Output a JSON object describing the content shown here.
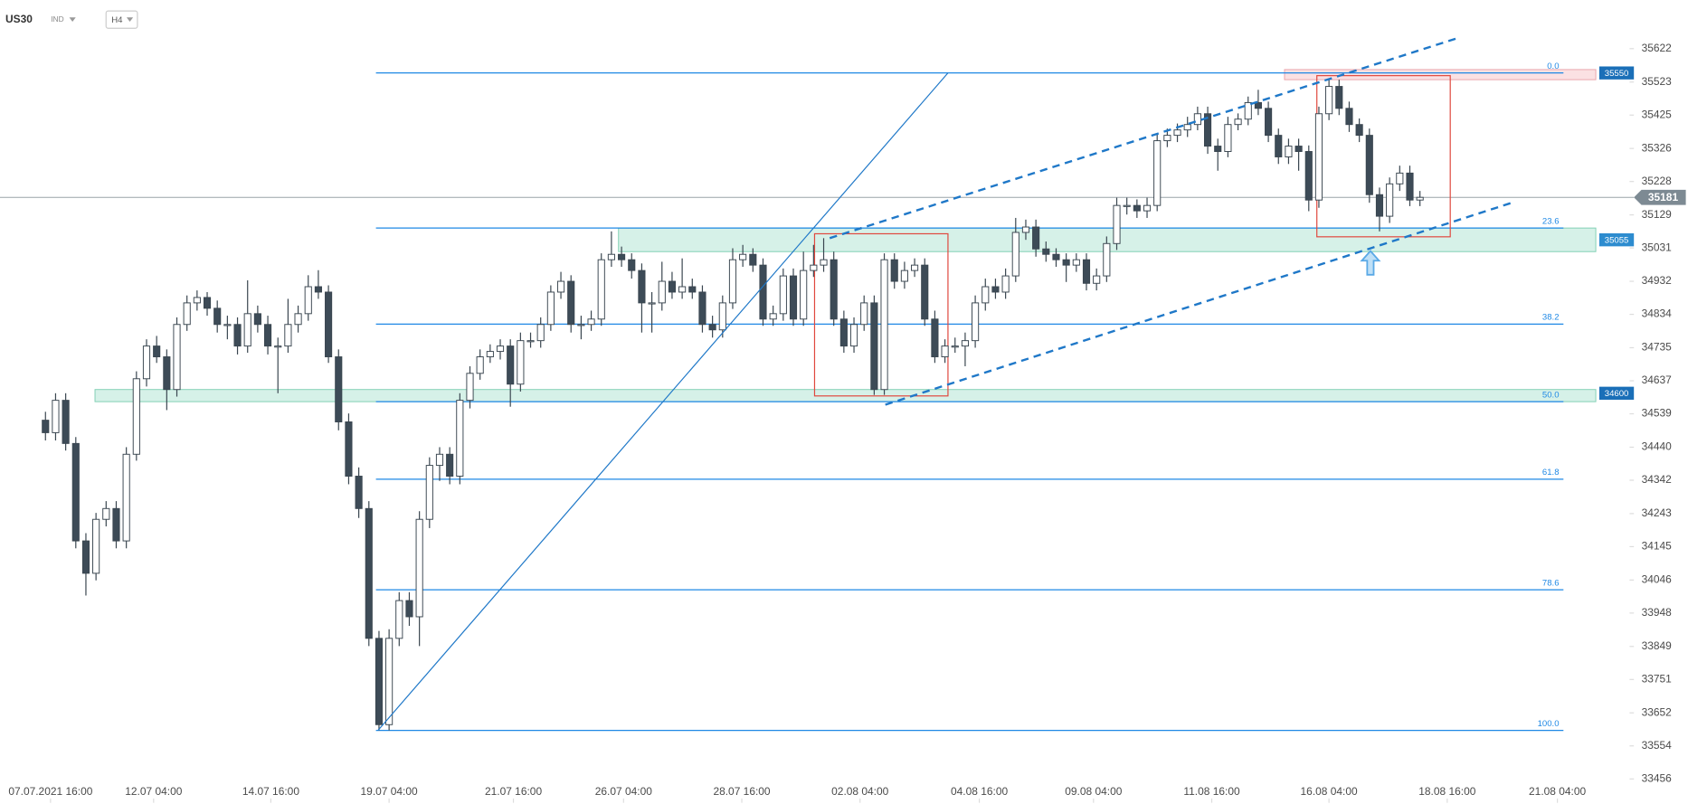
{
  "chart_data": {
    "type": "candlestick",
    "symbol": "US30",
    "market": "IND",
    "timeframe": "H4",
    "colors": {
      "up": "#ffffff",
      "down": "#3d4b57",
      "outline": "#3a4650",
      "fib": "#1e88e5",
      "trend": "#1f78c8",
      "box": "#e0483e",
      "price_line": "#9aa3a9",
      "price_box": "#7d8a93"
    },
    "open": [
      34520,
      34483,
      34579,
      34451,
      34162,
      34066,
      34226,
      34258,
      34162,
      34419,
      34643,
      34740,
      34708,
      34611,
      34804,
      34868,
      34884,
      34852,
      34804,
      34804,
      34740,
      34836,
      34804,
      34740,
      34740,
      34804,
      34836,
      34916,
      34900,
      34708,
      34515,
      34354,
      34258,
      33873,
      33617,
      33873,
      33985,
      33937,
      34226,
      34386,
      34419,
      34354,
      34579,
      34659,
      34708,
      34724,
      34740,
      34627,
      34756,
      34756,
      34804,
      34900,
      34932,
      34804,
      34804,
      34820,
      34996,
      35012,
      34996,
      34964,
      34868,
      34868,
      34932,
      34900,
      34916,
      34900,
      34804,
      34788,
      34868,
      34996,
      35012,
      34980,
      34820,
      34836,
      34948,
      34820,
      34964,
      34980,
      34996,
      34820,
      34740,
      34804,
      34868,
      34611,
      34996,
      34932,
      34964,
      34980,
      34820,
      34708,
      34740,
      34740,
      34756,
      34868,
      34916,
      34900,
      34948,
      35077,
      35093,
      35028,
      35012,
      34996,
      34980,
      34996,
      34926,
      34948,
      35044,
      35157,
      35157,
      35141,
      35157,
      35349,
      35365,
      35381,
      35397,
      35429,
      35333,
      35317,
      35397,
      35413,
      35462,
      35445,
      35365,
      35301,
      35333,
      35317,
      35173,
      35429,
      35510,
      35445,
      35397,
      35365,
      35189,
      35125,
      35221,
      35253,
      35173
    ],
    "high": [
      34545,
      34600,
      34600,
      34470,
      34185,
      34245,
      34280,
      34280,
      34440,
      34665,
      34760,
      34770,
      34730,
      34825,
      34890,
      34905,
      34900,
      34875,
      34830,
      34825,
      34935,
      34860,
      34830,
      34765,
      34880,
      34860,
      34950,
      34965,
      34920,
      34730,
      34540,
      34380,
      34280,
      33895,
      33900,
      34010,
      34010,
      34250,
      34410,
      34440,
      34440,
      34600,
      34680,
      34730,
      34745,
      34760,
      34760,
      34780,
      34780,
      34825,
      34920,
      34960,
      34950,
      34830,
      34845,
      35015,
      35080,
      35035,
      35015,
      34985,
      34900,
      34990,
      34960,
      35000,
      34940,
      34920,
      34830,
      34890,
      35030,
      35040,
      35030,
      35000,
      34860,
      34970,
      34970,
      35020,
      35040,
      35060,
      35020,
      34845,
      34825,
      34890,
      34890,
      35015,
      35015,
      34990,
      35000,
      35000,
      34845,
      34760,
      34765,
      34780,
      34890,
      34940,
      34940,
      34970,
      35120,
      35115,
      35115,
      35050,
      35030,
      35015,
      35015,
      35015,
      34970,
      35065,
      35180,
      35180,
      35175,
      35180,
      35370,
      35385,
      35400,
      35420,
      35450,
      35450,
      35355,
      35420,
      35430,
      35480,
      35500,
      35465,
      35385,
      35355,
      35355,
      35335,
      35450,
      35530,
      35530,
      35465,
      35415,
      35385,
      35210,
      35240,
      35275,
      35275,
      35200
    ],
    "low": [
      34460,
      34460,
      34430,
      34140,
      34000,
      34045,
      34205,
      34140,
      34140,
      34400,
      34620,
      34690,
      34550,
      34590,
      34785,
      34845,
      34830,
      34780,
      34760,
      34715,
      34720,
      34780,
      34715,
      34600,
      34720,
      34780,
      34815,
      34880,
      34690,
      34490,
      34330,
      34230,
      33850,
      33600,
      33600,
      33850,
      33910,
      33850,
      34200,
      34340,
      34330,
      34330,
      34555,
      34640,
      34690,
      34700,
      34560,
      34605,
      34735,
      34735,
      34785,
      34880,
      34780,
      34760,
      34785,
      34800,
      34975,
      34975,
      34940,
      34780,
      34780,
      34845,
      34880,
      34880,
      34880,
      34780,
      34765,
      34765,
      34850,
      34975,
      34960,
      34800,
      34800,
      34815,
      34800,
      34800,
      34945,
      34960,
      34800,
      34720,
      34720,
      34785,
      34595,
      34595,
      34910,
      34910,
      34945,
      34800,
      34690,
      34690,
      34720,
      34680,
      34735,
      34845,
      34880,
      34880,
      34930,
      35055,
      35005,
      34990,
      34975,
      34930,
      34960,
      34905,
      34905,
      34930,
      35025,
      35130,
      35120,
      35120,
      35140,
      35330,
      35345,
      35360,
      35380,
      35310,
      35260,
      35300,
      35380,
      35395,
      35425,
      35345,
      35280,
      35280,
      35260,
      35140,
      35150,
      35410,
      35425,
      35375,
      35345,
      35165,
      35080,
      35105,
      35200,
      35155,
      35155
    ],
    "close": [
      34483,
      34579,
      34451,
      34162,
      34066,
      34226,
      34258,
      34162,
      34419,
      34643,
      34740,
      34708,
      34611,
      34804,
      34868,
      34884,
      34852,
      34804,
      34804,
      34740,
      34836,
      34804,
      34740,
      34740,
      34804,
      34836,
      34916,
      34900,
      34708,
      34515,
      34354,
      34258,
      33873,
      33617,
      33873,
      33985,
      33937,
      34226,
      34386,
      34419,
      34354,
      34579,
      34659,
      34708,
      34724,
      34740,
      34627,
      34756,
      34756,
      34804,
      34900,
      34932,
      34804,
      34804,
      34820,
      34996,
      35012,
      34996,
      34964,
      34868,
      34868,
      34932,
      34900,
      34916,
      34900,
      34804,
      34788,
      34868,
      34996,
      35012,
      34980,
      34820,
      34836,
      34948,
      34820,
      34964,
      34980,
      34996,
      34820,
      34740,
      34804,
      34868,
      34611,
      34996,
      34932,
      34964,
      34980,
      34820,
      34708,
      34740,
      34740,
      34756,
      34868,
      34916,
      34900,
      34948,
      35077,
      35093,
      35028,
      35012,
      34996,
      34980,
      34996,
      34926,
      34948,
      35044,
      35157,
      35157,
      35141,
      35157,
      35349,
      35365,
      35381,
      35397,
      35429,
      35333,
      35317,
      35397,
      35413,
      35462,
      35445,
      35365,
      35301,
      35333,
      35317,
      35173,
      35429,
      35510,
      35445,
      35397,
      35365,
      35189,
      35125,
      35221,
      35253,
      35173,
      35181
    ],
    "xlim": [
      -4.5,
      156.1
    ],
    "ylim": [
      33382,
      35766
    ],
    "yticks": [
      35622,
      35523,
      35425,
      35326,
      35228,
      35129,
      35031,
      34932,
      34834,
      34735,
      34637,
      34539,
      34440,
      34342,
      34243,
      34145,
      34046,
      33948,
      33849,
      33751,
      33652,
      33554,
      33456
    ],
    "xticks": [
      {
        "value": 0.5,
        "label": "07.07.2021  16:00"
      },
      {
        "value": 10.7,
        "label": "12.07  04:00"
      },
      {
        "value": 22.3,
        "label": "14.07  16:00"
      },
      {
        "value": 34,
        "label": "19.07  04:00"
      },
      {
        "value": 46.3,
        "label": "21.07  16:00"
      },
      {
        "value": 57.2,
        "label": "26.07  04:00"
      },
      {
        "value": 68.9,
        "label": "28.07  16:00"
      },
      {
        "value": 80.6,
        "label": "02.08  04:00"
      },
      {
        "value": 92.4,
        "label": "04.08  16:00"
      },
      {
        "value": 103.7,
        "label": "09.08  04:00"
      },
      {
        "value": 115.4,
        "label": "11.08  16:00"
      },
      {
        "value": 127,
        "label": "16.08  04:00"
      },
      {
        "value": 138.7,
        "label": "18.08  16:00"
      },
      {
        "value": 149.6,
        "label": "21.08  04:00"
      }
    ],
    "last_price": 35181,
    "fibonacci": {
      "from": 32.7,
      "to": 150.2,
      "levels": [
        {
          "value": 35550,
          "label": "0.0"
        },
        {
          "value": 35090,
          "label": "23.6"
        },
        {
          "value": 34805,
          "label": "38.2"
        },
        {
          "value": 34575,
          "label": "50.0"
        },
        {
          "value": 34345,
          "label": "61.8"
        },
        {
          "value": 34017,
          "label": "78.6"
        },
        {
          "value": 33600,
          "label": "100.0"
        }
      ]
    },
    "zones": [
      {
        "x": [
          56.7,
          153.4
        ],
        "y": [
          35020,
          35090
        ],
        "level": 35055,
        "color": "#d6f1e8",
        "edge": "#7fcfb3",
        "tag": "#2d8ccf"
      },
      {
        "x": [
          4.9,
          153.4
        ],
        "y": [
          34575,
          34611
        ],
        "level": 34600,
        "color": "#d6f1e8",
        "edge": "#7fcfb3",
        "tag": "#1a6fb8"
      },
      {
        "x": [
          122.6,
          153.4
        ],
        "y": [
          35530,
          35560
        ],
        "level": 35550,
        "color": "#fbe1e3",
        "edge": "#e9a3aa",
        "tag": "#1a6fb8"
      }
    ],
    "trendlines": [
      {
        "x": [
          77.6,
          139.8
        ],
        "y": [
          35060,
          35654
        ],
        "dashed": true
      },
      {
        "x": [
          83.1,
          145.2
        ],
        "y": [
          34566,
          35166
        ],
        "dashed": true
      },
      {
        "x": [
          32.9,
          89.3
        ],
        "y": [
          33600,
          35550
        ],
        "dashed": false
      }
    ],
    "rectangles": [
      {
        "x": [
          76.1,
          89.3
        ],
        "y": [
          34592,
          35073
        ]
      },
      {
        "x": [
          125.8,
          139.0
        ],
        "y": [
          35064,
          35542
        ]
      }
    ],
    "arrow": {
      "x": 131.1,
      "y": 35022,
      "color": "#5aa9e6"
    }
  }
}
